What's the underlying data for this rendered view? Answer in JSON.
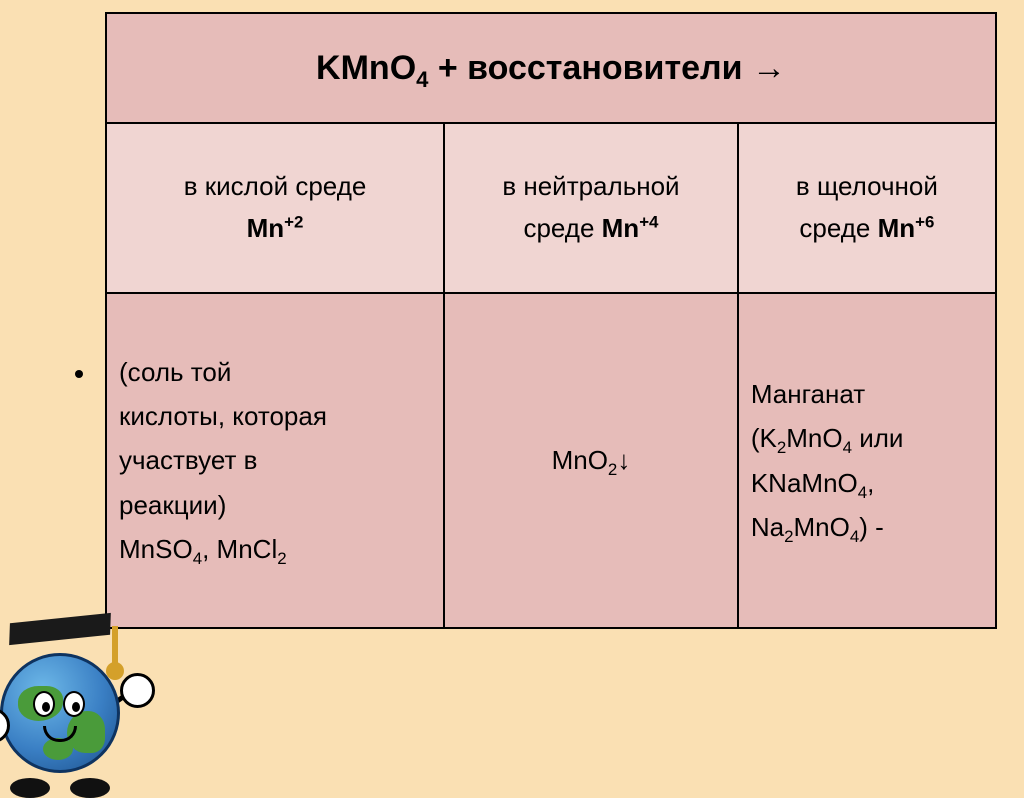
{
  "table": {
    "title_prefix": "KMnO",
    "title_sub": "4",
    "title_suffix": " + восстановители →",
    "columns": [
      {
        "line1": "в кислой среде",
        "species": "Mn",
        "charge": "+2"
      },
      {
        "line1": "в нейтральной",
        "line2": "среде ",
        "species": "Mn",
        "charge": "+4"
      },
      {
        "line1": "в щелочной",
        "line2": "среде ",
        "species": "Mn",
        "charge": "+6"
      }
    ],
    "cells": {
      "acidic": {
        "l1": "(соль той",
        "l2": "кислоты, которая",
        "l3": "участвует в",
        "l4": "реакции)",
        "f1a": "MnSO",
        "f1s": "4",
        "sep": ", ",
        "f2a": "MnCl",
        "f2s": "2"
      },
      "neutral": {
        "f": "MnO",
        "s": "2",
        "arrow": "↓"
      },
      "basic": {
        "l1": "Манганат",
        "open": "(",
        "f1a": "K",
        "f1s": "2",
        "f1b": "MnO",
        "f1s2": "4",
        "or": " или",
        "f2": "KNaMnO",
        "f2s": "4",
        "comma": ",",
        "f3a": "Na",
        "f3s": "2",
        "f3b": "MnO",
        "f3s2": "4",
        "close": ") -"
      }
    }
  },
  "colors": {
    "page_bg": "#fae0b3",
    "header_bg": "#e6bcb9",
    "colhdr_bg": "#f0d5d2",
    "cell_bg": "#e6bcb9",
    "border": "#000000",
    "text": "#000000"
  }
}
